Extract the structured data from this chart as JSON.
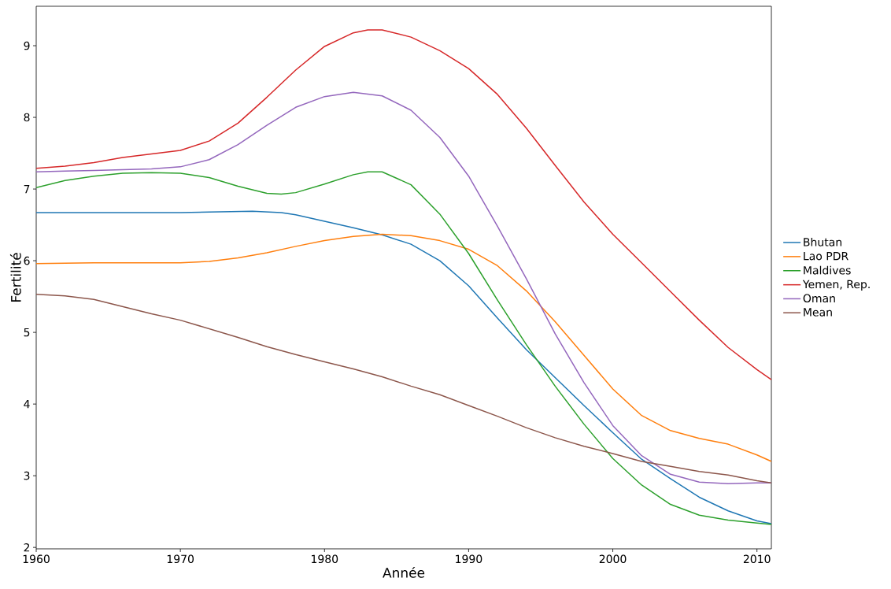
{
  "chart_data": {
    "type": "line",
    "xlabel": "Année",
    "ylabel": "Fertilité",
    "xlim": [
      1960,
      2011
    ],
    "ylim": [
      1.98,
      9.55
    ],
    "xticks": [
      1960,
      1970,
      1980,
      1990,
      2000,
      2010
    ],
    "yticks": [
      2,
      3,
      4,
      5,
      6,
      7,
      8,
      9
    ],
    "grid": false,
    "legend": "right",
    "marker": "none",
    "line_style": "solid",
    "series": [
      {
        "name": "Bhutan",
        "color": "#1f77b4",
        "x": [
          1960,
          1965,
          1970,
          1972,
          1975,
          1977,
          1978,
          1980,
          1982,
          1984,
          1986,
          1988,
          1990,
          1992,
          1994,
          1996,
          1998,
          2000,
          2002,
          2004,
          2006,
          2008,
          2010,
          2011
        ],
        "values": [
          6.67,
          6.67,
          6.67,
          6.68,
          6.69,
          6.67,
          6.64,
          6.55,
          6.46,
          6.36,
          6.23,
          6.0,
          5.65,
          5.2,
          4.76,
          4.37,
          3.98,
          3.6,
          3.23,
          2.96,
          2.7,
          2.51,
          2.37,
          2.33
        ]
      },
      {
        "name": "Lao PDR",
        "color": "#ff7f0e",
        "x": [
          1960,
          1964,
          1970,
          1972,
          1974,
          1976,
          1978,
          1980,
          1982,
          1984,
          1986,
          1988,
          1990,
          1992,
          1994,
          1996,
          1998,
          2000,
          2002,
          2004,
          2006,
          2008,
          2010,
          2011
        ],
        "values": [
          5.96,
          5.97,
          5.97,
          5.99,
          6.04,
          6.11,
          6.2,
          6.28,
          6.34,
          6.37,
          6.35,
          6.28,
          6.16,
          5.93,
          5.58,
          5.15,
          4.68,
          4.21,
          3.84,
          3.63,
          3.52,
          3.44,
          3.29,
          3.2
        ]
      },
      {
        "name": "Maldives",
        "color": "#2ca02c",
        "x": [
          1960,
          1962,
          1964,
          1966,
          1968,
          1970,
          1972,
          1974,
          1976,
          1977,
          1978,
          1980,
          1982,
          1983,
          1984,
          1986,
          1988,
          1990,
          1992,
          1994,
          1996,
          1998,
          2000,
          2002,
          2004,
          2006,
          2008,
          2010,
          2011
        ],
        "values": [
          7.02,
          7.12,
          7.18,
          7.22,
          7.23,
          7.22,
          7.16,
          7.04,
          6.94,
          6.93,
          6.95,
          7.07,
          7.2,
          7.24,
          7.24,
          7.06,
          6.65,
          6.1,
          5.45,
          4.83,
          4.25,
          3.72,
          3.24,
          2.87,
          2.6,
          2.45,
          2.38,
          2.34,
          2.32
        ]
      },
      {
        "name": "Yemen, Rep.",
        "color": "#d62728",
        "x": [
          1960,
          1962,
          1964,
          1966,
          1968,
          1970,
          1972,
          1974,
          1976,
          1978,
          1980,
          1982,
          1983,
          1984,
          1986,
          1988,
          1990,
          1992,
          1994,
          1996,
          1998,
          2000,
          2002,
          2004,
          2006,
          2008,
          2010,
          2011
        ],
        "values": [
          7.29,
          7.32,
          7.37,
          7.44,
          7.49,
          7.54,
          7.67,
          7.92,
          8.28,
          8.66,
          8.99,
          9.18,
          9.22,
          9.22,
          9.12,
          8.93,
          8.68,
          8.32,
          7.85,
          7.33,
          6.82,
          6.37,
          5.97,
          5.57,
          5.17,
          4.79,
          4.48,
          4.34
        ]
      },
      {
        "name": "Oman",
        "color": "#9467bd",
        "x": [
          1960,
          1962,
          1964,
          1966,
          1968,
          1970,
          1972,
          1974,
          1976,
          1978,
          1980,
          1982,
          1984,
          1986,
          1988,
          1990,
          1992,
          1994,
          1996,
          1998,
          2000,
          2002,
          2004,
          2006,
          2008,
          2010,
          2011
        ],
        "values": [
          7.24,
          7.25,
          7.26,
          7.27,
          7.28,
          7.31,
          7.41,
          7.62,
          7.89,
          8.14,
          8.29,
          8.35,
          8.3,
          8.1,
          7.72,
          7.18,
          6.48,
          5.75,
          4.98,
          4.3,
          3.7,
          3.28,
          3.02,
          2.91,
          2.89,
          2.9,
          2.9
        ]
      },
      {
        "name": "Mean",
        "color": "#8c564b",
        "x": [
          1960,
          1962,
          1964,
          1966,
          1968,
          1970,
          1972,
          1974,
          1976,
          1978,
          1980,
          1982,
          1984,
          1986,
          1988,
          1990,
          1992,
          1994,
          1996,
          1998,
          2000,
          2002,
          2004,
          2006,
          2008,
          2010,
          2011
        ],
        "values": [
          5.53,
          5.51,
          5.46,
          5.36,
          5.26,
          5.17,
          5.05,
          4.93,
          4.8,
          4.69,
          4.59,
          4.49,
          4.38,
          4.25,
          4.13,
          3.98,
          3.83,
          3.67,
          3.53,
          3.41,
          3.31,
          3.2,
          3.13,
          3.06,
          3.01,
          2.93,
          2.9
        ]
      }
    ]
  }
}
